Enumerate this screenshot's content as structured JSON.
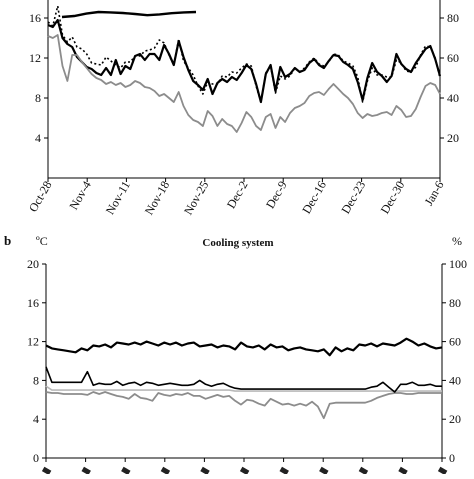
{
  "chart_data": [
    {
      "type": "line",
      "title": "",
      "y_left_ticks": [
        "4",
        "8",
        "12",
        "16"
      ],
      "y_right_ticks": [
        "20",
        "40",
        "60",
        "80"
      ],
      "x_tick_labels": [
        "Oct-28",
        "Nov-4",
        "Nov-11",
        "Nov-18",
        "Nov-25",
        "Dec-2",
        "Dec-9",
        "Dec-16",
        "Dec-23",
        "Dec-30",
        "Jan-6"
      ],
      "ylim_left": [
        0,
        18
      ],
      "ylim_right": [
        0,
        90
      ],
      "series": [
        {
          "values": [
            15.3,
            15.1,
            15.8,
            14.0,
            13.4,
            13.1,
            12.1,
            11.6,
            11.1,
            10.9,
            10.5,
            10.3,
            11.0,
            10.3,
            11.8,
            10.4,
            11.2,
            10.9,
            12.2,
            12.4,
            11.8,
            12.4,
            12.4,
            11.8,
            13.3,
            12.4,
            11.3,
            13.7,
            12.1,
            10.8,
            9.7,
            9.3,
            8.8,
            9.9,
            8.4,
            9.5,
            9.9,
            9.6,
            10.1,
            9.8,
            10.5,
            11.3,
            10.9,
            9.4,
            7.6,
            10.4,
            11.3,
            8.7,
            11.1,
            10.1,
            10.4,
            11.0,
            10.6,
            10.8,
            11.5,
            11.9,
            11.3,
            11.0,
            11.7,
            12.3,
            12.2,
            11.6,
            11.3,
            10.9,
            9.6,
            7.8,
            10.0,
            11.5,
            10.6,
            10.2,
            9.6,
            10.2,
            12.4,
            11.4,
            10.9,
            10.6,
            11.5,
            12.2,
            12.9,
            13.2,
            11.9,
            10.2
          ]
        },
        {
          "values": [
            15.6,
            15.2,
            17.2,
            14.3,
            13.6,
            14.1,
            13.1,
            12.9,
            12.4,
            11.5,
            11.4,
            11.3,
            12.1,
            11.7,
            11.3,
            11.0,
            11.6,
            11.6,
            12.2,
            12.2,
            12.7,
            12.8,
            13.0,
            13.8,
            13.5,
            12.3,
            11.3,
            13.9,
            11.7,
            11.0,
            10.3,
            9.2,
            8.4,
            9.6,
            9.4,
            9.4,
            10.2,
            10.1,
            10.6,
            10.5,
            11.0,
            11.4,
            11.2,
            9.2,
            7.6,
            10.5,
            11.2,
            8.5,
            10.2,
            9.9,
            10.2,
            11.0,
            10.6,
            11.0,
            11.6,
            12.0,
            11.4,
            11.2,
            11.6,
            12.4,
            12.3,
            11.7,
            11.5,
            11.2,
            10.1,
            7.6,
            9.7,
            11.0,
            10.3,
            10.3,
            10.1,
            10.1,
            11.8,
            11.5,
            10.7,
            10.6,
            11.1,
            12.3,
            13.2,
            13.1,
            12.0,
            10.0
          ]
        },
        {
          "values": [
            14.2,
            14.0,
            14.3,
            11.2,
            9.7,
            12.3,
            12.3,
            11.6,
            11.0,
            10.4,
            10.0,
            9.8,
            9.4,
            9.6,
            9.3,
            9.5,
            9.1,
            9.3,
            9.7,
            9.5,
            9.1,
            9.0,
            8.7,
            8.2,
            8.4,
            8.0,
            7.6,
            8.6,
            7.2,
            6.3,
            5.8,
            5.6,
            5.2,
            6.7,
            6.2,
            5.2,
            5.9,
            5.4,
            5.2,
            4.6,
            5.5,
            6.6,
            6.1,
            5.2,
            4.8,
            6.1,
            6.4,
            5.0,
            6.1,
            5.6,
            6.5,
            7.0,
            7.2,
            7.5,
            8.2,
            8.5,
            8.6,
            8.3,
            8.9,
            9.4,
            8.9,
            8.4,
            8.0,
            7.4,
            6.5,
            6.0,
            6.4,
            6.2,
            6.3,
            6.5,
            6.6,
            6.3,
            7.2,
            6.8,
            6.1,
            6.2,
            6.9,
            8.1,
            9.2,
            9.5,
            9.3,
            8.4
          ]
        }
      ],
      "top_curve": {
        "values": [
          0.95,
          0.9,
          0.78,
          0.7,
          0.72,
          0.75,
          0.8,
          0.86,
          0.82,
          0.76,
          0.72,
          0.7
        ]
      }
    },
    {
      "type": "line",
      "panel_label": "b",
      "title": "Cooling system",
      "y_left_unit": "ºC",
      "y_right_unit": "%",
      "y_left_ticks": [
        "0",
        "4",
        "8",
        "12",
        "16",
        "20"
      ],
      "y_right_ticks": [
        "0",
        "20",
        "40",
        "60",
        "80",
        "100"
      ],
      "ylim_left": [
        0,
        20
      ],
      "ylim_right": [
        0,
        100
      ],
      "series": [
        {
          "values": [
            11.6,
            11.3,
            11.2,
            11.1,
            11.0,
            10.9,
            11.3,
            11.1,
            11.6,
            11.5,
            11.7,
            11.4,
            11.9,
            11.8,
            11.7,
            11.9,
            11.7,
            12.0,
            11.8,
            11.6,
            11.9,
            11.7,
            11.9,
            11.6,
            11.8,
            11.9,
            11.5,
            11.6,
            11.7,
            11.4,
            11.6,
            11.5,
            11.2,
            11.9,
            11.5,
            11.4,
            11.6,
            11.2,
            11.7,
            11.4,
            11.5,
            11.1,
            11.3,
            11.4,
            11.2,
            11.1,
            11.0,
            11.2,
            10.6,
            11.4,
            11.0,
            11.3,
            11.1,
            11.7,
            11.6,
            11.8,
            11.5,
            11.8,
            11.7,
            11.6,
            11.9,
            12.3,
            12.0,
            11.6,
            11.8,
            11.5,
            11.3,
            11.4
          ]
        },
        {
          "values": [
            9.4,
            7.8,
            7.8,
            7.8,
            7.8,
            7.8,
            7.8,
            8.9,
            7.5,
            7.7,
            7.6,
            7.6,
            7.9,
            7.5,
            7.7,
            7.8,
            7.5,
            7.8,
            7.7,
            7.5,
            7.6,
            7.7,
            7.6,
            7.5,
            7.5,
            7.6,
            8.0,
            7.6,
            7.4,
            7.6,
            7.7,
            7.4,
            7.2,
            7.1,
            7.1,
            7.1,
            7.1,
            7.1,
            7.1,
            7.1,
            7.1,
            7.1,
            7.1,
            7.1,
            7.1,
            7.1,
            7.1,
            7.1,
            7.1,
            7.1,
            7.1,
            7.1,
            7.1,
            7.1,
            7.1,
            7.3,
            7.4,
            7.8,
            7.3,
            6.8,
            7.6,
            7.6,
            7.8,
            7.5,
            7.5,
            7.6,
            7.4,
            7.4
          ]
        },
        {
          "values": [
            6.8,
            6.7,
            6.7,
            6.6,
            6.6,
            6.6,
            6.6,
            6.5,
            6.8,
            6.6,
            6.8,
            6.6,
            6.4,
            6.3,
            6.1,
            6.6,
            6.2,
            6.1,
            5.9,
            6.7,
            6.5,
            6.4,
            6.6,
            6.5,
            6.7,
            6.4,
            6.4,
            6.1,
            6.3,
            6.5,
            6.3,
            6.4,
            5.9,
            5.5,
            6.0,
            5.9,
            5.6,
            5.4,
            6.1,
            5.8,
            5.5,
            5.6,
            5.4,
            5.6,
            5.4,
            5.8,
            5.3,
            4.1,
            5.6,
            5.7,
            5.7,
            5.7,
            5.7,
            5.7,
            5.7,
            5.9,
            6.2,
            6.4,
            6.6,
            6.7,
            6.7,
            6.6,
            6.6,
            6.7,
            6.7,
            6.7,
            6.7,
            6.7
          ]
        },
        {
          "values": [
            7.4,
            7.0,
            7.0,
            7.0,
            7.0,
            7.0,
            7.0,
            7.0,
            7.0,
            7.0,
            7.0,
            7.0,
            7.0,
            7.0,
            7.0,
            7.0,
            7.0,
            7.0,
            7.0,
            7.0,
            7.0,
            7.0,
            7.0,
            7.0,
            7.0,
            7.0,
            7.0,
            7.0,
            7.0,
            7.0,
            7.0,
            7.0,
            6.9,
            6.9,
            6.9,
            6.9,
            6.9,
            6.9,
            6.9,
            6.9,
            6.9,
            6.9,
            6.9,
            6.9,
            6.9,
            6.9,
            6.9,
            6.9,
            6.9,
            6.9,
            6.9,
            6.9,
            6.9,
            6.9,
            6.9,
            6.9,
            6.9,
            6.9,
            6.9,
            6.9,
            6.9,
            6.9,
            6.9,
            6.9,
            6.9,
            6.9,
            6.9,
            6.9
          ]
        }
      ]
    }
  ]
}
